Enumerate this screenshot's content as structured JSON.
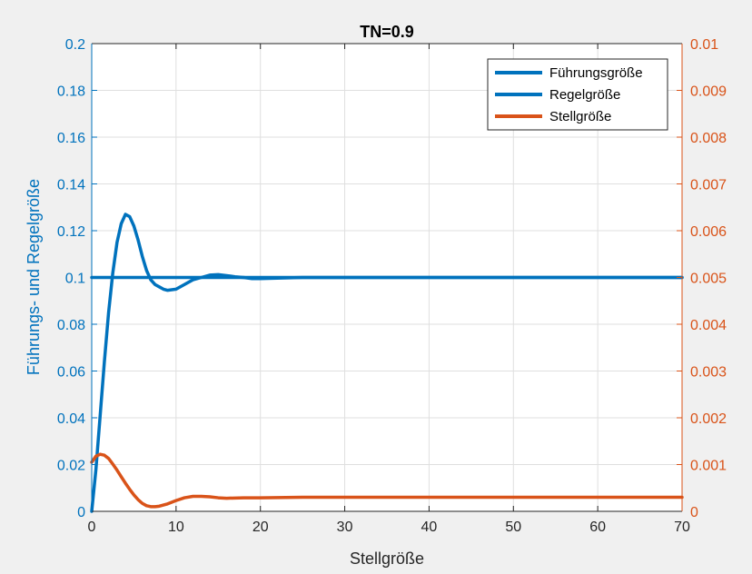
{
  "colors": {
    "figure_bg": "#f0f0f0",
    "axes_bg": "#ffffff",
    "left_axis": "#0072bd",
    "right_axis": "#d95319",
    "grid": "#dfdfdf",
    "text": "#262626"
  },
  "chart_data": {
    "type": "line",
    "title": "TN=0.9",
    "xlabel": "Stellgröße",
    "ylabel_left": "Führungs- und Regelgröße",
    "ylabel_right": "",
    "xlim": [
      0,
      70
    ],
    "ylim_left": [
      0,
      0.2
    ],
    "ylim_right": [
      0,
      0.01
    ],
    "grid": true,
    "legend_position": "top-right",
    "x_ticks": [
      "0",
      "10",
      "20",
      "30",
      "40",
      "50",
      "60",
      "70"
    ],
    "y_left_ticks": [
      "0",
      "0.02",
      "0.04",
      "0.06",
      "0.08",
      "0.1",
      "0.12",
      "0.14",
      "0.16",
      "0.18",
      "0.2"
    ],
    "y_right_ticks": [
      "0",
      "0.001",
      "0.002",
      "0.003",
      "0.004",
      "0.005",
      "0.006",
      "0.007",
      "0.008",
      "0.009",
      "0.01"
    ],
    "series": [
      {
        "name": "Führungsgröße",
        "axis": "left",
        "color": "#0072bd",
        "x": [
          0,
          70
        ],
        "y": [
          0.1,
          0.1
        ]
      },
      {
        "name": "Regelgröße",
        "axis": "left",
        "color": "#0072bd",
        "x": [
          0,
          0.5,
          1,
          1.5,
          2,
          2.5,
          3,
          3.5,
          4,
          4.5,
          5,
          5.5,
          6,
          6.5,
          7,
          7.5,
          8,
          8.5,
          9,
          10,
          11,
          12,
          13,
          14,
          15,
          16,
          17,
          18,
          19,
          20,
          22,
          25,
          30,
          40,
          50,
          60,
          70
        ],
        "y": [
          0,
          0.018,
          0.041,
          0.064,
          0.085,
          0.102,
          0.115,
          0.123,
          0.127,
          0.126,
          0.122,
          0.116,
          0.109,
          0.103,
          0.099,
          0.097,
          0.096,
          0.095,
          0.0945,
          0.095,
          0.097,
          0.099,
          0.1,
          0.101,
          0.1012,
          0.1008,
          0.1003,
          0.1,
          0.0995,
          0.0995,
          0.0997,
          0.1,
          0.1,
          0.1,
          0.1,
          0.1,
          0.1
        ]
      },
      {
        "name": "Stellgröße",
        "axis": "right",
        "color": "#d95319",
        "x": [
          0,
          0.5,
          1,
          1.5,
          2,
          2.5,
          3,
          3.5,
          4,
          4.5,
          5,
          5.5,
          6,
          6.5,
          7,
          7.5,
          8,
          9,
          10,
          11,
          12,
          13,
          14,
          15,
          16,
          18,
          20,
          25,
          30,
          40,
          50,
          60,
          70
        ],
        "y": [
          0.00105,
          0.00118,
          0.00122,
          0.0012,
          0.00113,
          0.00101,
          0.00088,
          0.00074,
          0.0006,
          0.00047,
          0.00035,
          0.00025,
          0.00017,
          0.00012,
          0.0001,
          0.0001,
          0.00011,
          0.00016,
          0.00023,
          0.00029,
          0.00032,
          0.00032,
          0.00031,
          0.00029,
          0.00028,
          0.00029,
          0.00029,
          0.0003,
          0.0003,
          0.0003,
          0.0003,
          0.0003,
          0.0003
        ]
      }
    ]
  }
}
